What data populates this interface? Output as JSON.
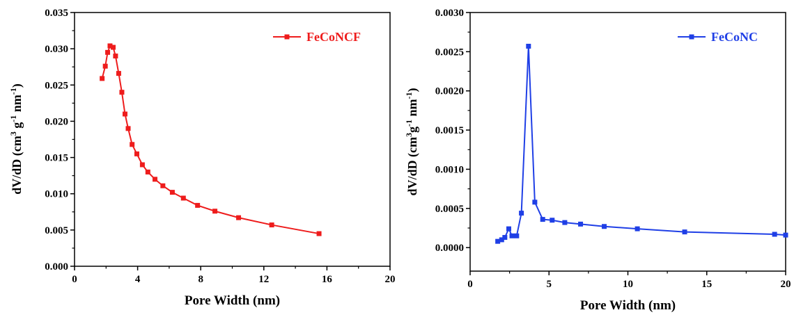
{
  "chart_data": [
    {
      "type": "line",
      "xlabel": "Pore Width (nm)",
      "ylabel": {
        "base": "dV/dD (cm",
        "sup1": "3",
        "mid1": " g",
        "sup2": "-1",
        "mid2": " nm",
        "sup3": "-1",
        "end": ")"
      },
      "xlim": [
        0,
        20
      ],
      "ylim": [
        0,
        0.035
      ],
      "xticks": [
        0,
        4,
        8,
        12,
        16,
        20
      ],
      "xtick_labels": [
        "0",
        "4",
        "8",
        "12",
        "16",
        "20"
      ],
      "yticks": [
        0,
        0.005,
        0.01,
        0.015,
        0.02,
        0.025,
        0.03,
        0.035
      ],
      "ytick_labels": [
        "0.000",
        "0.005",
        "0.010",
        "0.015",
        "0.020",
        "0.025",
        "0.030",
        "0.035"
      ],
      "legend_position": "top-right",
      "grid": false,
      "series": [
        {
          "name": "FeCoNCF",
          "color": "#ee1c1c",
          "marker": "square",
          "x": [
            1.75,
            1.95,
            2.1,
            2.25,
            2.45,
            2.6,
            2.8,
            3.0,
            3.2,
            3.4,
            3.65,
            3.95,
            4.3,
            4.65,
            5.1,
            5.6,
            6.2,
            6.9,
            7.8,
            8.9,
            10.4,
            12.5,
            15.5
          ],
          "values": [
            0.0259,
            0.0276,
            0.0295,
            0.0304,
            0.0302,
            0.029,
            0.0266,
            0.024,
            0.021,
            0.019,
            0.0168,
            0.0155,
            0.014,
            0.013,
            0.012,
            0.0111,
            0.0102,
            0.0094,
            0.0084,
            0.0076,
            0.0067,
            0.0057,
            0.0045
          ]
        }
      ]
    },
    {
      "type": "line",
      "xlabel": "Pore Width (nm)",
      "ylabel": {
        "base": "dV/dD (cm",
        "sup1": "3",
        "mid1": "g",
        "sup2": "-1",
        "mid2": " nm",
        "sup3": "-1",
        "end": ")"
      },
      "xlim": [
        0,
        20
      ],
      "ylim": [
        -0.0003,
        0.003
      ],
      "xticks": [
        0,
        5,
        10,
        15,
        20
      ],
      "xtick_labels": [
        "0",
        "5",
        "10",
        "15",
        "20"
      ],
      "yticks": [
        0,
        0.0005,
        0.001,
        0.0015,
        0.002,
        0.0025,
        0.003
      ],
      "ytick_labels": [
        "0.0000",
        "0.0005",
        "0.0010",
        "0.0015",
        "0.0020",
        "0.0025",
        "0.0030"
      ],
      "legend_position": "top-right",
      "grid": false,
      "series": [
        {
          "name": "FeCoNC",
          "color": "#1f3fe6",
          "marker": "square",
          "x": [
            1.75,
            2.0,
            2.2,
            2.45,
            2.65,
            2.95,
            3.25,
            3.7,
            4.1,
            4.6,
            5.2,
            6.0,
            7.0,
            8.5,
            10.6,
            13.6,
            19.3,
            20.0
          ],
          "values": [
            8e-05,
            0.0001,
            0.00013,
            0.00024,
            0.00015,
            0.00015,
            0.00044,
            0.00257,
            0.00058,
            0.00036,
            0.00035,
            0.00032,
            0.0003,
            0.00027,
            0.00024,
            0.0002,
            0.00017,
            0.00016
          ]
        }
      ]
    }
  ]
}
